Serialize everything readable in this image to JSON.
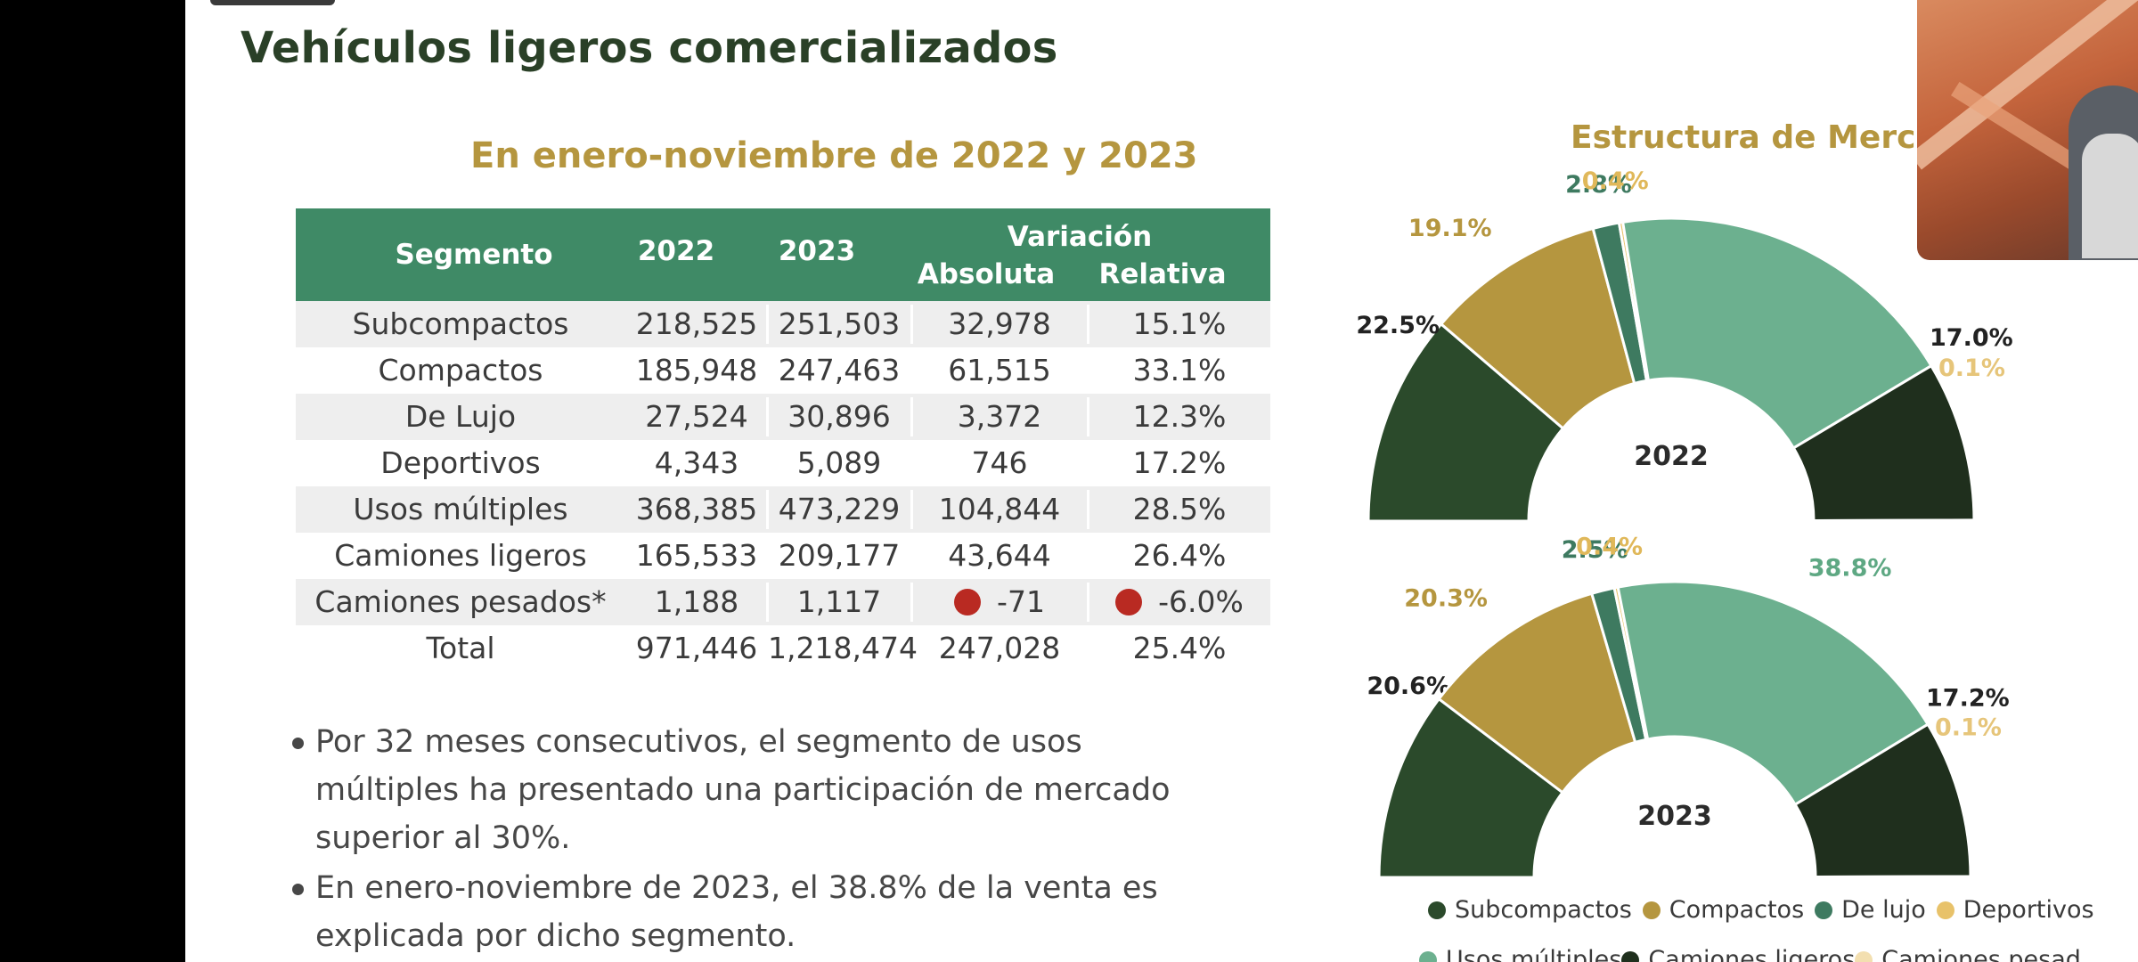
{
  "title": "Vehículos ligeros comercializados",
  "subtitle": "En enero-noviembre de 2022 y 2023",
  "right_title": "Estructura de Merc",
  "table": {
    "headers": {
      "segmento": "Segmento",
      "y2022": "2022",
      "y2023": "2023",
      "variacion": "Variación",
      "absoluta": "Absoluta",
      "relativa": "Relativa"
    },
    "rows": [
      {
        "segmento": "Subcompactos",
        "v2022": "218,525",
        "v2023": "251,503",
        "absoluta": "32,978",
        "relativa": "15.1%"
      },
      {
        "segmento": "Compactos",
        "v2022": "185,948",
        "v2023": "247,463",
        "absoluta": "61,515",
        "relativa": "33.1%"
      },
      {
        "segmento": "De Lujo",
        "v2022": "27,524",
        "v2023": "30,896",
        "absoluta": "3,372",
        "relativa": "12.3%"
      },
      {
        "segmento": "Deportivos",
        "v2022": "4,343",
        "v2023": "5,089",
        "absoluta": "746",
        "relativa": "17.2%"
      },
      {
        "segmento": "Usos múltiples",
        "v2022": "368,385",
        "v2023": "473,229",
        "absoluta": "104,844",
        "relativa": "28.5%"
      },
      {
        "segmento": "Camiones ligeros",
        "v2022": "165,533",
        "v2023": "209,177",
        "absoluta": "43,644",
        "relativa": "26.4%"
      },
      {
        "segmento": "Camiones pesados*",
        "v2022": "1,188",
        "v2023": "1,117",
        "absoluta": "-71",
        "relativa": "-6.0%"
      },
      {
        "segmento": "Total",
        "v2022": "971,446",
        "v2023": "1,218,474",
        "absoluta": "247,028",
        "relativa": "25.4%"
      }
    ],
    "negative_color": "#b92a22"
  },
  "bullets": [
    "Por 32 meses consecutivos, el segmento de usos múltiples ha presentado una participación de mercado superior al 30%.",
    "En enero-noviembre de 2023, el 38.8% de la venta es explicada por dicho segmento."
  ],
  "colors": {
    "Subcompactos": "#2b4a2b",
    "Compactos": "#b5963f",
    "De lujo": "#3e7a60",
    "Deportivos": "#e8c26a",
    "Usos múltiples": "#6cb08f",
    "Camiones ligeros": "#1f2f1d",
    "Camiones pesados": "#f3dfb0"
  },
  "chart_data": [
    {
      "type": "pie",
      "title": "2022",
      "categories": [
        "Subcompactos",
        "Compactos",
        "De lujo",
        "Deportivos",
        "Usos múltiples",
        "Camiones ligeros",
        "Camiones pesados"
      ],
      "values": [
        22.5,
        19.1,
        2.8,
        0.4,
        37.9,
        17.0,
        0.1
      ],
      "labels": [
        "22.5%",
        "19.1%",
        "2.8%",
        "0.4%",
        "",
        "17.0%",
        "0.1%"
      ]
    },
    {
      "type": "pie",
      "title": "2023",
      "categories": [
        "Subcompactos",
        "Compactos",
        "De lujo",
        "Deportivos",
        "Usos múltiples",
        "Camiones ligeros",
        "Camiones pesados"
      ],
      "values": [
        20.6,
        20.3,
        2.5,
        0.4,
        38.8,
        17.2,
        0.1
      ],
      "labels": [
        "20.6%",
        "20.3%",
        "2.5%",
        "0.4%",
        "38.8%",
        "17.2%",
        "0.1%"
      ]
    }
  ],
  "legend": {
    "row1": [
      "Subcompactos",
      "Compactos",
      "De lujo",
      "Deportivos"
    ],
    "row2": [
      "Usos múltiples",
      "Camiones ligeros",
      "Camiones pesad"
    ]
  }
}
